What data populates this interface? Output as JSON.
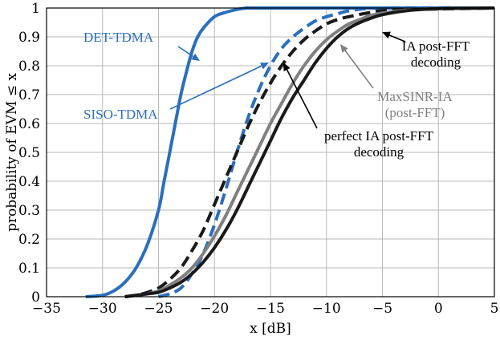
{
  "chart_data": {
    "type": "line",
    "xlabel": "x [dB]",
    "ylabel": "probability of EVM ≤ x",
    "xlim": [
      -35,
      5
    ],
    "ylim": [
      0,
      1
    ],
    "xticks": [
      -35,
      -30,
      -25,
      -20,
      -15,
      -10,
      -5,
      0,
      5
    ],
    "yticks": [
      0,
      0.1,
      0.2,
      0.3,
      0.4,
      0.5,
      0.6,
      0.7,
      0.8,
      0.9,
      1
    ],
    "grid": true,
    "colors": {
      "blue": "#2a6fbd",
      "black": "#1a1a1a",
      "gray": "#808080"
    },
    "series": [
      {
        "name": "DET-TDMA",
        "color": "#2a6fbd",
        "style": "solid",
        "x": [
          -31.5,
          -30,
          -29,
          -28,
          -27,
          -26,
          -25,
          -24.5,
          -24,
          -23.5,
          -23,
          -22.5,
          -22,
          -21.5,
          -21,
          -20,
          -19,
          -18,
          -17,
          -15,
          5
        ],
        "y": [
          0,
          0.005,
          0.02,
          0.05,
          0.1,
          0.18,
          0.3,
          0.4,
          0.5,
          0.6,
          0.7,
          0.78,
          0.85,
          0.9,
          0.93,
          0.97,
          0.985,
          0.995,
          1.0,
          1.0,
          1.0
        ]
      },
      {
        "name": "SISO-TDMA",
        "color": "#2a6fbd",
        "style": "dashed",
        "x": [
          -25,
          -24,
          -23,
          -22,
          -21,
          -20,
          -19,
          -18,
          -17,
          -16,
          -15,
          -14,
          -13,
          -12,
          -11,
          -10,
          -9,
          -8,
          -5,
          5
        ],
        "y": [
          0,
          0.01,
          0.03,
          0.08,
          0.15,
          0.25,
          0.37,
          0.5,
          0.62,
          0.72,
          0.8,
          0.86,
          0.9,
          0.93,
          0.955,
          0.97,
          0.98,
          0.99,
          1.0,
          1.0
        ]
      },
      {
        "name": "perfect IA post-FFT decoding",
        "color": "#1a1a1a",
        "style": "dashed",
        "x": [
          -28,
          -27,
          -26,
          -25,
          -24,
          -23,
          -22,
          -21,
          -20,
          -19,
          -18,
          -17,
          -16,
          -15,
          -14,
          -13,
          -12,
          -11,
          -10,
          -9,
          -8,
          -6,
          -4,
          5
        ],
        "y": [
          0,
          0.005,
          0.015,
          0.03,
          0.06,
          0.1,
          0.16,
          0.23,
          0.32,
          0.41,
          0.5,
          0.59,
          0.67,
          0.74,
          0.8,
          0.85,
          0.89,
          0.92,
          0.945,
          0.96,
          0.97,
          0.985,
          0.993,
          1.0
        ]
      },
      {
        "name": "MaxSINR-IA (post-FFT)",
        "color": "#808080",
        "style": "solid",
        "x": [
          -28,
          -27,
          -26,
          -25,
          -24,
          -23,
          -22,
          -21,
          -20,
          -19,
          -18,
          -17,
          -16,
          -15,
          -14,
          -13,
          -12,
          -11,
          -10,
          -9,
          -8,
          -7,
          -6,
          -4,
          -2,
          0,
          5
        ],
        "y": [
          0,
          0.005,
          0.01,
          0.02,
          0.04,
          0.065,
          0.1,
          0.15,
          0.21,
          0.28,
          0.36,
          0.44,
          0.52,
          0.6,
          0.67,
          0.74,
          0.8,
          0.85,
          0.89,
          0.92,
          0.945,
          0.96,
          0.975,
          0.988,
          0.995,
          0.998,
          1.0
        ]
      },
      {
        "name": "IA post-FFT decoding",
        "color": "#1a1a1a",
        "style": "solid",
        "x": [
          -28,
          -27,
          -26,
          -25,
          -24,
          -23,
          -22,
          -21,
          -20,
          -19,
          -18,
          -17,
          -16,
          -15,
          -14,
          -13,
          -12,
          -11,
          -10,
          -9,
          -8,
          -7,
          -6,
          -5,
          -3,
          -1,
          1,
          5
        ],
        "y": [
          0,
          0.005,
          0.01,
          0.015,
          0.03,
          0.05,
          0.08,
          0.12,
          0.17,
          0.23,
          0.3,
          0.38,
          0.46,
          0.54,
          0.62,
          0.69,
          0.75,
          0.81,
          0.86,
          0.9,
          0.93,
          0.95,
          0.965,
          0.977,
          0.99,
          0.996,
          0.999,
          1.0
        ]
      }
    ],
    "annotations": [
      {
        "lines": [
          "DET-TDMA"
        ],
        "color": "#2a6fbd",
        "target": "DET-TDMA"
      },
      {
        "lines": [
          "SISO-TDMA"
        ],
        "color": "#2a6fbd",
        "target": "SISO-TDMA"
      },
      {
        "lines": [
          "perfect IA post-FFT",
          "decoding"
        ],
        "color": "#000000",
        "target": "perfect IA post-FFT decoding"
      },
      {
        "lines": [
          "MaxSINR-IA",
          "(post-FFT)"
        ],
        "color": "#808080",
        "target": "MaxSINR-IA (post-FFT)"
      },
      {
        "lines": [
          "IA post-FFT",
          "decoding"
        ],
        "color": "#000000",
        "target": "IA post-FFT decoding"
      }
    ]
  }
}
